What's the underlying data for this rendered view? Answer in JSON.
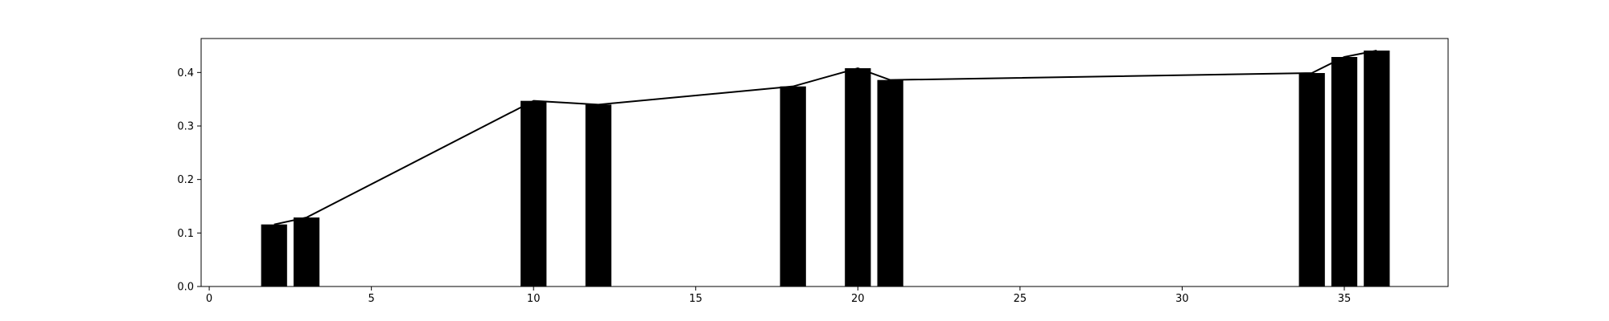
{
  "chart_data": {
    "type": "bar",
    "x": [
      2,
      3,
      10,
      12,
      18,
      20,
      21,
      34,
      35,
      36
    ],
    "values": [
      0.116,
      0.129,
      0.347,
      0.34,
      0.374,
      0.408,
      0.386,
      0.399,
      0.429,
      0.441
    ],
    "overlay_line": true,
    "xlim": [
      -0.25,
      38.2
    ],
    "ylim": [
      0,
      0.4635
    ],
    "xticks": [
      0,
      5,
      10,
      15,
      20,
      25,
      30,
      35
    ],
    "yticks": [
      0.0,
      0.1,
      0.2,
      0.3,
      0.4
    ],
    "xtick_labels": [
      "0",
      "5",
      "10",
      "15",
      "20",
      "25",
      "30",
      "35"
    ],
    "ytick_labels": [
      "0.0",
      "0.1",
      "0.2",
      "0.3",
      "0.4"
    ],
    "title": "",
    "xlabel": "",
    "ylabel": "",
    "grid": false,
    "colors": {
      "bar": "#000000",
      "line": "#000000",
      "axes": "#000000",
      "background": "#ffffff"
    }
  }
}
